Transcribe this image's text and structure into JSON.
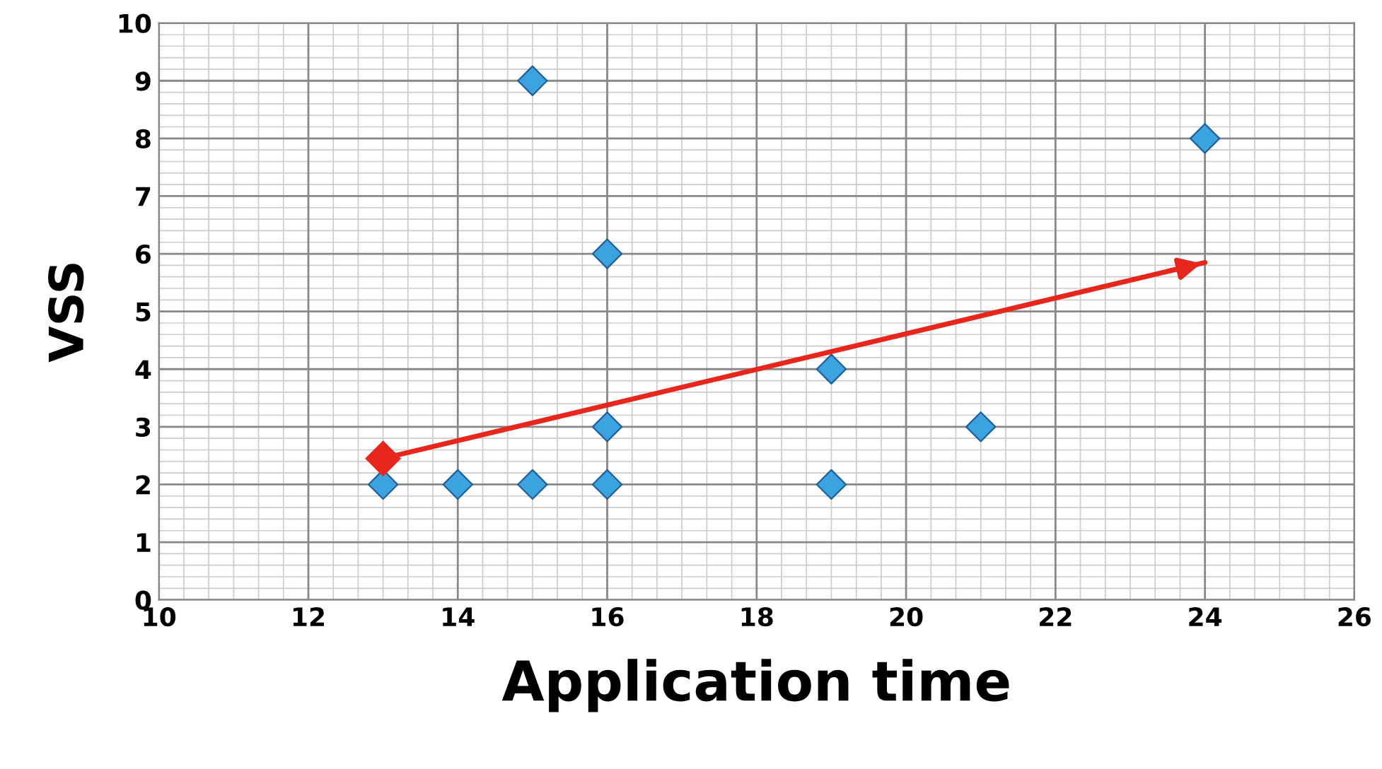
{
  "chart_data": {
    "type": "scatter",
    "xlabel": "Application time",
    "ylabel": "VSS",
    "series": [
      {
        "color": "#3ba3e0",
        "marker": "diamond",
        "x": [
          13,
          14,
          15,
          15,
          16,
          16,
          16,
          19,
          19,
          21,
          24
        ],
        "values": [
          2,
          2,
          2,
          9,
          2,
          3,
          6,
          2,
          4,
          3,
          8
        ]
      },
      {
        "type": "line",
        "color": "#e8261c",
        "marker": "diamond",
        "x": [
          13,
          24
        ],
        "values": [
          2.45,
          5.85
        ]
      }
    ],
    "xlim": [
      10,
      26
    ],
    "xticks": [
      10,
      12,
      14,
      16,
      18,
      20,
      22,
      24,
      26
    ],
    "ylim": [
      0,
      10
    ],
    "yticks": [
      0,
      1,
      2,
      3,
      4,
      5,
      6,
      7,
      8,
      9,
      10
    ],
    "grid": true,
    "legend": false
  }
}
